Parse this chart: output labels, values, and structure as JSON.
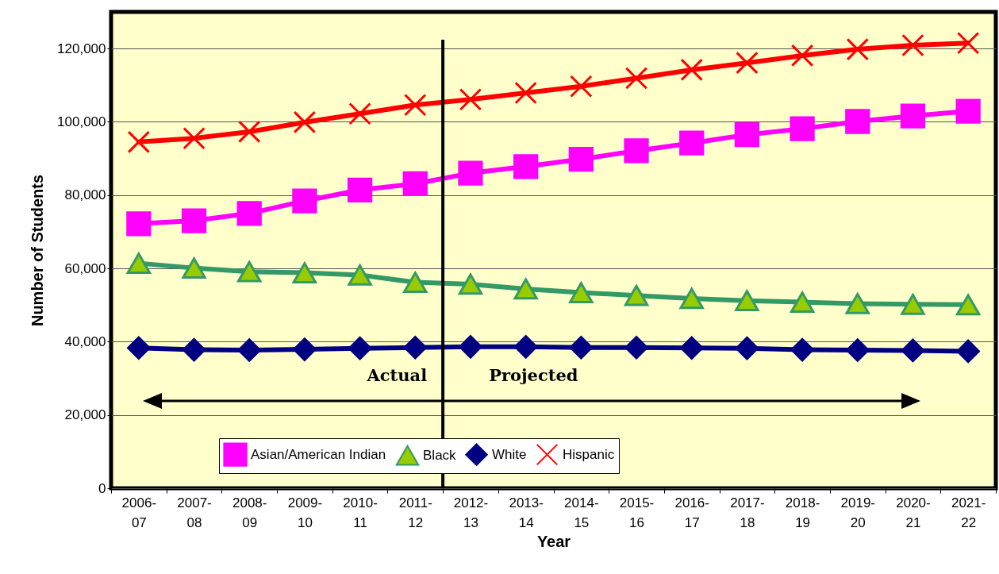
{
  "chart_data": {
    "type": "line",
    "xlabel": "Year",
    "ylabel": "Number of Students",
    "categories": [
      "2006-07",
      "2007-08",
      "2008-09",
      "2009-10",
      "2010-11",
      "2011-12",
      "2012-13",
      "2013-14",
      "2014-15",
      "2015-16",
      "2016-17",
      "2017-18",
      "2018-19",
      "2019-20",
      "2020-21",
      "2021-22"
    ],
    "series": [
      {
        "name": "Asian/American Indian",
        "color": "#ff00ff",
        "marker": "square",
        "values": [
          72200,
          73000,
          75000,
          78400,
          81400,
          83100,
          86000,
          87800,
          89800,
          92100,
          94200,
          96500,
          98100,
          100100,
          101600,
          102900
        ]
      },
      {
        "name": "Black",
        "color": "#339966",
        "marker": "triangle",
        "values": [
          61400,
          60100,
          59100,
          58800,
          58200,
          56200,
          55700,
          54400,
          53400,
          52600,
          51800,
          51200,
          50800,
          50400,
          50200,
          50100
        ]
      },
      {
        "name": "White",
        "color": "#000080",
        "marker": "diamond",
        "values": [
          38300,
          37800,
          37700,
          37900,
          38200,
          38400,
          38600,
          38600,
          38400,
          38400,
          38300,
          38200,
          37800,
          37700,
          37600,
          37400
        ]
      },
      {
        "name": "Hispanic",
        "color": "#ff0000",
        "marker": "cross",
        "values": [
          94500,
          95500,
          97300,
          99900,
          102200,
          104600,
          106100,
          107900,
          109700,
          111900,
          114200,
          116100,
          118100,
          119800,
          120900,
          121500
        ]
      }
    ],
    "ylim": [
      0,
      130000
    ],
    "yticks": [
      0,
      {
        "value": 20000,
        "label": "20,000"
      },
      {
        "value": 40000,
        "label": "40,000"
      },
      {
        "value": 60000,
        "label": "60,000"
      },
      {
        "value": 80000,
        "label": "80,000"
      },
      {
        "value": 100000,
        "label": "100,000"
      },
      {
        "value": 120000,
        "label": "120,000"
      }
    ],
    "grid": "y",
    "legend": "bottom",
    "ref_lines": [
      {
        "axis": "x",
        "value": "2011-12"
      }
    ],
    "annotations": [
      "Actual",
      "Projected"
    ]
  }
}
